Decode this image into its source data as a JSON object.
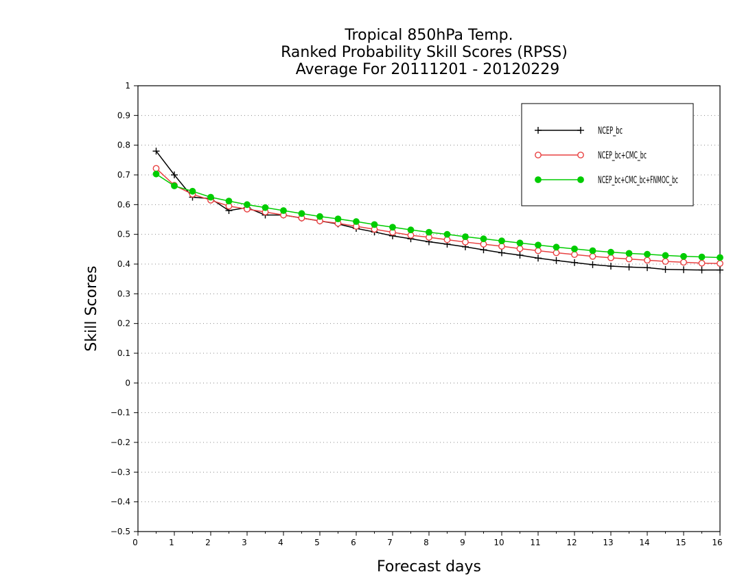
{
  "chart_data": {
    "type": "line",
    "title_lines": [
      "Tropical 850hPa Temp.",
      "Ranked Probability Skill Scores (RPSS)",
      "Average For 20111201 - 20120229"
    ],
    "xlabel": "Forecast days",
    "ylabel": "Skill Scores",
    "xlim": [
      0,
      16
    ],
    "ylim": [
      -0.5,
      1
    ],
    "x_ticks": [
      "0",
      "1",
      "2",
      "3",
      "4",
      "5",
      "6",
      "7",
      "8",
      "9",
      "10",
      "11",
      "12",
      "13",
      "14",
      "15",
      "16"
    ],
    "y_ticks": [
      "−0.5",
      "−0.4",
      "−0.3",
      "−0.2",
      "−0.1",
      "0",
      "0.1",
      "0.2",
      "0.3",
      "0.4",
      "0.5",
      "0.6",
      "0.7",
      "0.8",
      "0.9",
      "1"
    ],
    "grid": "horizontal-dotted",
    "legend_position": "top-right",
    "x": [
      0.5,
      1,
      1.5,
      2,
      2.5,
      3,
      3.5,
      4,
      4.5,
      5,
      5.5,
      6,
      6.5,
      7,
      7.5,
      8,
      8.5,
      9,
      9.5,
      10,
      10.5,
      11,
      11.5,
      12,
      12.5,
      13,
      13.5,
      14,
      14.5,
      15,
      15.5,
      16
    ],
    "series": [
      {
        "name": "NCEP_bc",
        "color": "#000000",
        "marker": "plus",
        "values": [
          0.78,
          0.7,
          0.625,
          0.62,
          0.58,
          0.59,
          0.565,
          0.565,
          0.555,
          0.545,
          0.535,
          0.52,
          0.508,
          0.495,
          0.485,
          0.475,
          0.467,
          0.458,
          0.448,
          0.438,
          0.43,
          0.42,
          0.412,
          0.405,
          0.398,
          0.393,
          0.39,
          0.388,
          0.382,
          0.381,
          0.38,
          0.38
        ]
      },
      {
        "name": "NCEP_bc+CMC_bc",
        "color": "#e84040",
        "marker": "open-circle",
        "values": [
          0.722,
          0.665,
          0.635,
          0.615,
          0.595,
          0.585,
          0.575,
          0.565,
          0.555,
          0.545,
          0.537,
          0.527,
          0.517,
          0.507,
          0.497,
          0.49,
          0.482,
          0.474,
          0.467,
          0.46,
          0.452,
          0.445,
          0.438,
          0.432,
          0.426,
          0.421,
          0.417,
          0.413,
          0.409,
          0.406,
          0.403,
          0.402
        ]
      },
      {
        "name": "NCEP_bc+CMC_bc+FNMOC_bc",
        "color": "#00cc00",
        "marker": "filled-circle",
        "values": [
          0.703,
          0.663,
          0.645,
          0.625,
          0.612,
          0.6,
          0.59,
          0.58,
          0.57,
          0.56,
          0.552,
          0.543,
          0.533,
          0.524,
          0.515,
          0.507,
          0.5,
          0.492,
          0.485,
          0.478,
          0.471,
          0.464,
          0.457,
          0.451,
          0.445,
          0.44,
          0.436,
          0.433,
          0.429,
          0.426,
          0.424,
          0.422
        ]
      }
    ]
  }
}
